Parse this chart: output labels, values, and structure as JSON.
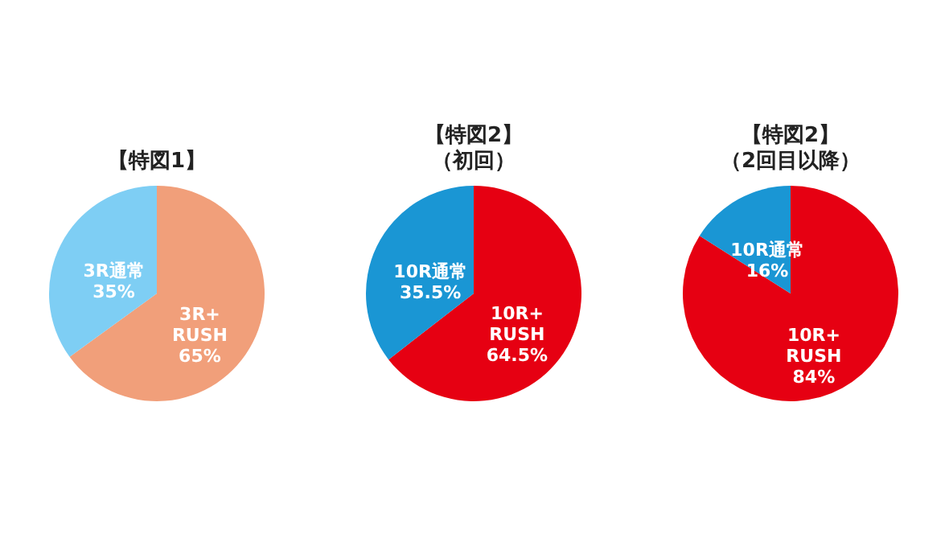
{
  "chart_data": [
    {
      "type": "pie",
      "title": "【特図1】",
      "categories": [
        "3R+\nRUSH",
        "3R通常"
      ],
      "values": [
        65,
        35
      ],
      "colors": [
        "#f19f7a",
        "#7ecef4"
      ],
      "value_labels": [
        "65%",
        "35%"
      ]
    },
    {
      "type": "pie",
      "title": "【特図2】",
      "subtitle": "（初回）",
      "categories": [
        "10R+\nRUSH",
        "10R通常"
      ],
      "values": [
        64.5,
        35.5
      ],
      "colors": [
        "#e60012",
        "#1a96d4"
      ],
      "value_labels": [
        "64.5%",
        "35.5%"
      ]
    },
    {
      "type": "pie",
      "title": "【特図2】",
      "subtitle": "（2回目以降）",
      "categories": [
        "10R+\nRUSH",
        "10R通常"
      ],
      "values": [
        84,
        16
      ],
      "colors": [
        "#e60012",
        "#1a96d4"
      ],
      "value_labels": [
        "84%",
        "16%"
      ]
    }
  ]
}
